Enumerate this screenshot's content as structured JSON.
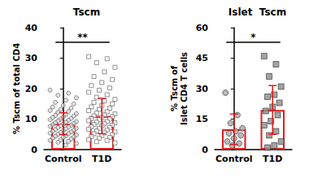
{
  "chart_data": [
    {
      "type": "bar",
      "title": "Tscm",
      "y_label": "% Tscm of total CD4",
      "categories": [
        "Control",
        "T1D"
      ],
      "values": [
        8.5,
        11
      ],
      "error": [
        3.6,
        5.8
      ],
      "color": "#e41a1c",
      "ylim": [
        0,
        40
      ],
      "yticks": [
        0,
        10,
        20,
        30,
        40
      ],
      "grid": false,
      "points": [
        {
          "category": "Control",
          "marker": "circle",
          "color": "#d9d9d9",
          "values": [
            19.5,
            18.5,
            17.8,
            17,
            16.2,
            15.5,
            15,
            14.5,
            14,
            13.6,
            13.2,
            12.8,
            12.5,
            12.2,
            11.8,
            11.5,
            11.2,
            11,
            10.7,
            10.5,
            10.2,
            10,
            9.8,
            9.6,
            9.4,
            9.2,
            9,
            8.8,
            8.6,
            8.4,
            8.2,
            8,
            7.8,
            7.6,
            7.4,
            7.2,
            7,
            6.8,
            6.6,
            6.4,
            6.2,
            6,
            5.8,
            5.6,
            5.4,
            5.2,
            5,
            4.8,
            4.6,
            4.4,
            4.2,
            4,
            3.8,
            3.5,
            3.2,
            3,
            2.7,
            2.4,
            2,
            1.5
          ]
        },
        {
          "category": "T1D",
          "marker": "square",
          "color": "#ffffff",
          "values": [
            30.5,
            29.8,
            28.5,
            27,
            25.5,
            24,
            23,
            22,
            21,
            20.2,
            19.5,
            18.8,
            18,
            17.2,
            16.5,
            16,
            15.5,
            15,
            14.5,
            14,
            13.6,
            13.2,
            12.8,
            12.4,
            12,
            11.7,
            11.4,
            11.1,
            10.8,
            10.5,
            10.2,
            10,
            9.8,
            9.5,
            9.2,
            9,
            8.8,
            8.5,
            8.2,
            8,
            7.8,
            7.5,
            7.2,
            7,
            6.7,
            6.4,
            6.1,
            5.8,
            5.5,
            5.2,
            4.9,
            4.6,
            4.3,
            4,
            3.7,
            3.3,
            3,
            2.6,
            2.2
          ]
        }
      ],
      "annotations": [
        {
          "text": "**",
          "from": "Control",
          "to": "T1D"
        }
      ]
    },
    {
      "type": "bar",
      "title": "Islet  Tscm",
      "y_label": "% Tscm of\nIslet CD4 T cells",
      "categories": [
        "Control",
        "T1D"
      ],
      "values": [
        10,
        19.5
      ],
      "error": [
        7.5,
        12
      ],
      "color": "#e41a1c",
      "ylim": [
        0,
        60
      ],
      "yticks": [
        0,
        15,
        30,
        45,
        60
      ],
      "grid": false,
      "points": [
        {
          "category": "Control",
          "marker": "circle",
          "color": "#a6a6a6",
          "values": [
            28,
            17,
            13,
            10.5,
            9,
            8,
            7,
            5.5,
            4,
            3,
            2
          ]
        },
        {
          "category": "T1D",
          "marker": "square",
          "color": "#8c8c8c",
          "values": [
            46,
            42,
            36,
            31,
            27,
            26,
            23,
            21,
            19,
            17,
            14,
            12,
            9,
            7,
            4,
            2,
            1
          ]
        }
      ],
      "annotations": [
        {
          "text": "*",
          "from": "Control",
          "to": "T1D"
        }
      ]
    }
  ]
}
